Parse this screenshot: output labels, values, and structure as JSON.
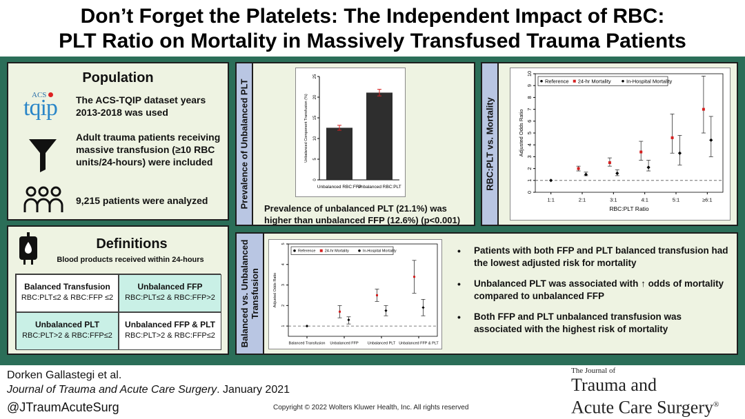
{
  "title": {
    "line1": "Don’t Forget the Platelets: The Independent Impact of RBC:",
    "line2": "PLT Ratio on Mortality in Massively Transfused Trauma Patients"
  },
  "population": {
    "heading": "Population",
    "logo_acs": "ACS",
    "logo_word": "tqip",
    "item1": "The ACS-TQIP dataset years 2013-2018 was used",
    "item2": "Adult trauma patients receiving massive transfusion (≥10 RBC units/24-hours) were included",
    "item3": "9,215 patients were analyzed",
    "icons": [
      "tqip-logo",
      "funnel-icon",
      "people-icon"
    ]
  },
  "definitions": {
    "heading": "Definitions",
    "subheading": "Blood products received within 24-hours",
    "cells": [
      {
        "title": "Balanced Transfusion",
        "rule": "RBC:PLT≤2 & RBC:FFP ≤2"
      },
      {
        "title": "Unbalanced FFP",
        "rule": "RBC:PLT≤2 & RBC:FFP>2"
      },
      {
        "title": "Unbalanced PLT",
        "rule": "RBC:PLT>2 & RBC:FFP≤2"
      },
      {
        "title": "Unbalanced FFP & PLT",
        "rule": "RBC:PLT>2 & RBC:FFP≤2"
      }
    ]
  },
  "prevalence": {
    "side_label": "Prevalence of Unbalanced PLT",
    "caption": "Prevalence of unbalanced PLT (21.1%) was higher than unbalanced FFP (12.6%) (p<0.001)"
  },
  "ratio_panel": {
    "side_label": "RBC:PLT vs. Mortality"
  },
  "balanced_panel": {
    "side_label_1": "Balanced vs. Unbalanced",
    "side_label_2": "Transfusion",
    "bullets": [
      "Patients with both FFP and PLT balanced transfusion had the lowest adjusted risk for mortality",
      "Unbalanced PLT was associated with ↑ odds of mortality compared to unbalanced FFP",
      "Both FFP and PLT unbalanced transfusion was associated with the highest risk of mortality"
    ]
  },
  "footer": {
    "authors": "Dorken Gallastegi et al.",
    "journal_italic": "Journal of Trauma and Acute Care Surgery",
    "journal_date": ". January 2021",
    "handle": "@JTraumAcuteSurg",
    "copyright": "Copyright © 2022 Wolters Kluwer Health, Inc. All rights reserved",
    "logo_small": "The Journal of",
    "logo_line1": "Trauma and",
    "logo_line2": "Acute Care Surgery",
    "logo_mark": "®"
  },
  "colors": {
    "background_green": "#2b6e58",
    "panel": "#eef3e2",
    "side_label": "#b9c6e3",
    "highlight_cell": "#c9f0e6",
    "series_24hr": "#d62020",
    "series_hospital": "#000000"
  },
  "chart_data": [
    {
      "type": "bar",
      "categories": [
        "Unbalanced RBC:FFP",
        "Unbalanced RBC:PLT"
      ],
      "values": [
        12.6,
        21.1
      ],
      "errors": [
        0.6,
        0.8
      ],
      "ylabel": "Unbalanced Component Transfusion (%)",
      "ylim": [
        0,
        25
      ],
      "yticks": [
        0,
        5,
        10,
        15,
        20,
        25
      ],
      "grid": false
    },
    {
      "type": "scatter",
      "categories": [
        "1:1",
        "2:1",
        "3:1",
        "4:1",
        "5:1",
        "≥6:1"
      ],
      "xlabel": "RBC:PLT Ratio",
      "ylabel": "Adjusted Odds Ratio",
      "ylim": [
        0,
        10
      ],
      "yticks": [
        0,
        1,
        2,
        3,
        4,
        5,
        6,
        7,
        8,
        9,
        10
      ],
      "reference_line": 1,
      "legend_position": "top-left",
      "legend": [
        "Reference",
        "24-hr Mortality",
        "In-Hospital Mortality"
      ],
      "series": [
        {
          "name": "Reference",
          "values": [
            1,
            null,
            null,
            null,
            null,
            null
          ]
        },
        {
          "name": "24-hr Mortality",
          "values": [
            null,
            2.0,
            2.5,
            3.4,
            4.6,
            7.0
          ],
          "low": [
            null,
            1.8,
            2.2,
            2.7,
            3.3,
            5.0
          ],
          "high": [
            null,
            2.2,
            2.9,
            4.3,
            6.6,
            9.8
          ]
        },
        {
          "name": "In-Hospital Mortality",
          "values": [
            null,
            1.5,
            1.6,
            2.1,
            3.3,
            4.4
          ],
          "low": [
            null,
            1.4,
            1.4,
            1.8,
            2.3,
            3.0
          ],
          "high": [
            null,
            1.7,
            1.9,
            2.7,
            4.8,
            6.4
          ]
        }
      ]
    },
    {
      "type": "scatter",
      "categories": [
        "Balanced Transfusion",
        "Unbalanced FFP",
        "Unbalanced PLT",
        "Unbalanced FFP & PLT"
      ],
      "ylabel": "Adjusted Odds Ratio",
      "ylim": [
        0.5,
        5
      ],
      "yticks": [
        1,
        2,
        3,
        4,
        5
      ],
      "reference_line": 1,
      "legend_position": "top-left",
      "legend": [
        "Reference",
        "24-hr Mortality",
        "In-Hospital Mortality"
      ],
      "series": [
        {
          "name": "Reference",
          "values": [
            1,
            null,
            null,
            null
          ]
        },
        {
          "name": "24-hr Mortality",
          "values": [
            null,
            1.7,
            2.5,
            3.4
          ],
          "low": [
            null,
            1.4,
            2.2,
            2.6
          ],
          "high": [
            null,
            2.0,
            2.8,
            4.2
          ]
        },
        {
          "name": "In-Hospital Mortality",
          "values": [
            null,
            1.3,
            1.75,
            1.9
          ],
          "low": [
            null,
            1.1,
            1.5,
            1.5
          ],
          "high": [
            null,
            1.45,
            2.0,
            2.3
          ]
        }
      ]
    }
  ]
}
